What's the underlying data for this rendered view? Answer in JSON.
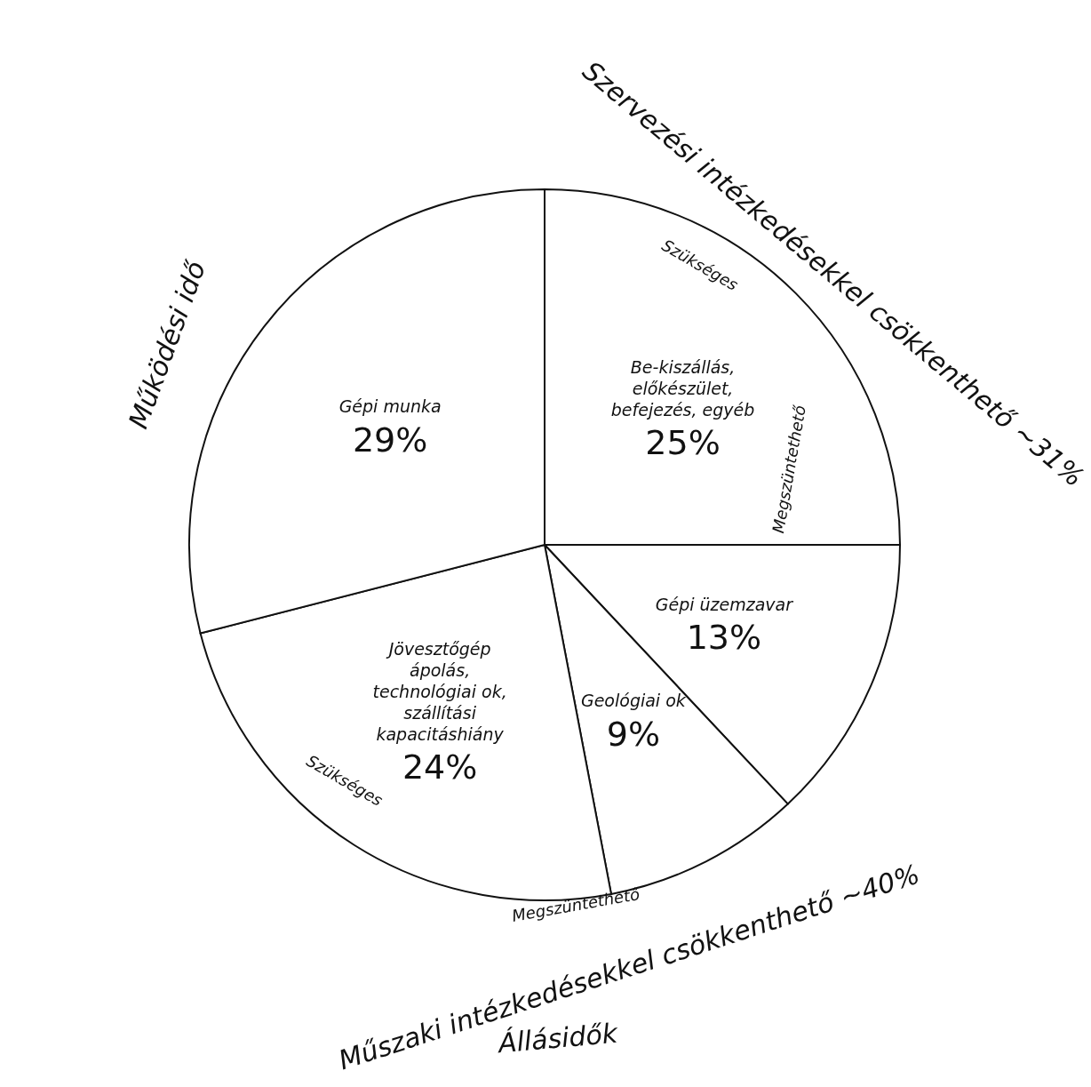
{
  "chart_data": {
    "type": "pie",
    "categories": [
      "Be-kiszállás, előkészület, befejezés, egyéb",
      "Gépi üzemzavar",
      "Geológiai ok",
      "Jövesztőgép ápolás, technológiai ok, szállítási kapacitáshiány",
      "Gépi munka"
    ],
    "values": [
      25,
      13,
      9,
      24,
      29
    ],
    "colors": [
      "#ffffff",
      "#ffffff",
      "#ffffff",
      "#ffffff",
      "#ffffff"
    ],
    "value_labels": [
      "25%",
      "13%",
      "9%",
      "24%",
      "29%"
    ],
    "annotations": [
      "Működési idő",
      "Állásidők",
      "Szervezési intézkedésekkel csökkenthető ~31%",
      "Műszaki intézkedésekkel csökkenthető ~40%",
      "Szükséges",
      "Megszüntethető",
      "Szükséges",
      "Megszüntethető"
    ]
  }
}
